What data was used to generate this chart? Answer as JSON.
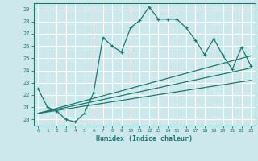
{
  "title": "",
  "xlabel": "Humidex (Indice chaleur)",
  "background_color": "#cce8ec",
  "grid_color": "#ffffff",
  "line_color": "#1a7a6e",
  "xlim": [
    -0.5,
    23.5
  ],
  "ylim": [
    19.5,
    29.5
  ],
  "yticks": [
    20,
    21,
    22,
    23,
    24,
    25,
    26,
    27,
    28,
    29
  ],
  "xticks": [
    0,
    1,
    2,
    3,
    4,
    5,
    6,
    7,
    8,
    9,
    10,
    11,
    12,
    13,
    14,
    15,
    16,
    17,
    18,
    19,
    20,
    21,
    22,
    23
  ],
  "series": [
    {
      "x": [
        0,
        1,
        2,
        3,
        4,
        5,
        6,
        7,
        8,
        9,
        10,
        11,
        12,
        13,
        14,
        15,
        16,
        17,
        18,
        19,
        20,
        21,
        22,
        23
      ],
      "y": [
        22.5,
        21.0,
        20.7,
        20.0,
        19.8,
        20.5,
        22.2,
        26.7,
        26.0,
        25.5,
        27.5,
        28.1,
        29.2,
        28.2,
        28.2,
        28.2,
        27.5,
        26.5,
        25.3,
        26.6,
        25.2,
        24.1,
        25.9,
        24.4
      ]
    },
    {
      "x": [
        0,
        23
      ],
      "y": [
        20.5,
        25.2
      ]
    },
    {
      "x": [
        0,
        23
      ],
      "y": [
        20.5,
        24.2
      ]
    },
    {
      "x": [
        0,
        23
      ],
      "y": [
        20.5,
        23.2
      ]
    }
  ]
}
